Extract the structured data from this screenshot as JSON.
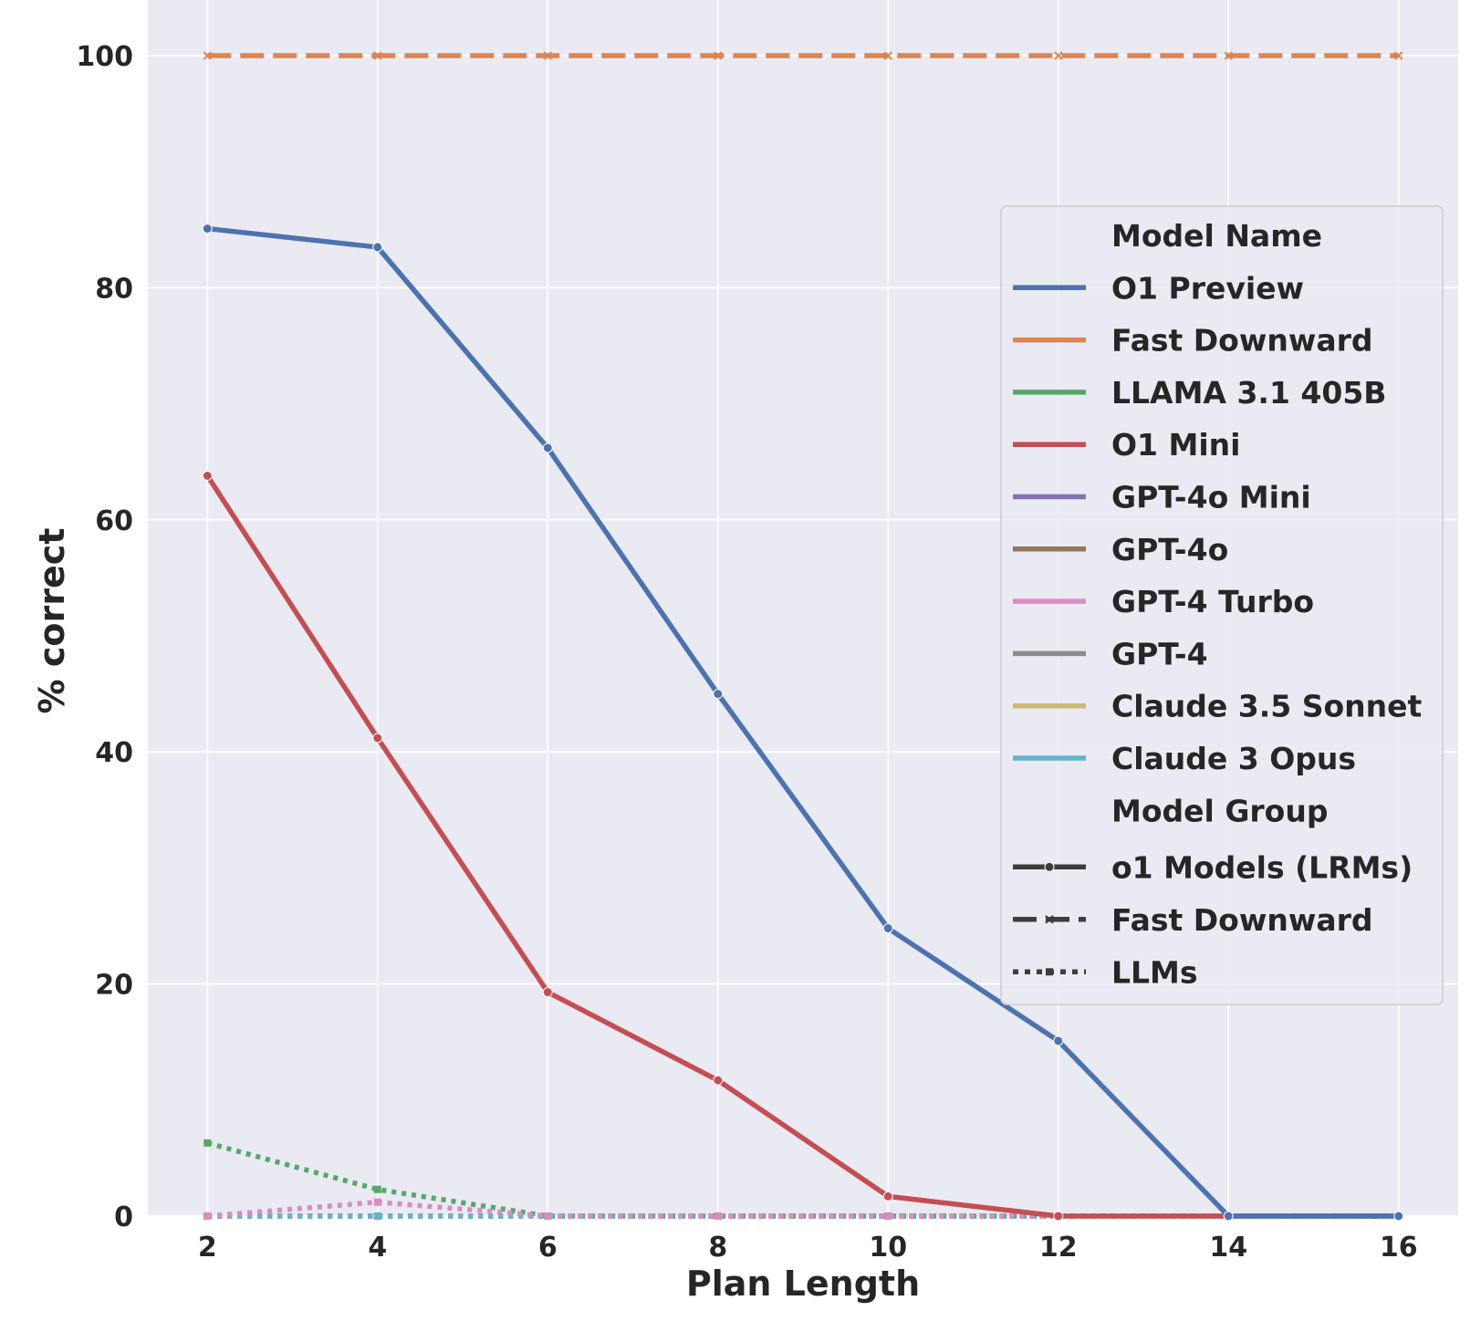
{
  "chart_data": {
    "type": "line",
    "xlabel": "Plan Length",
    "ylabel": "% correct",
    "x": [
      2,
      4,
      6,
      8,
      10,
      12,
      14,
      16
    ],
    "xticks": [
      2,
      4,
      6,
      8,
      10,
      12,
      14,
      16
    ],
    "yticks": [
      0,
      20,
      40,
      60,
      80,
      100
    ],
    "xlim": [
      1.3,
      16.7
    ],
    "ylim": [
      0,
      104.8
    ],
    "grid": true,
    "background": "#eaeaf2",
    "legend_position": "right",
    "legend_sections": [
      {
        "title": "Model Name",
        "entries": [
          {
            "label": "O1 Preview",
            "color": "#4c72b0"
          },
          {
            "label": "Fast Downward",
            "color": "#dd8452"
          },
          {
            "label": "LLAMA 3.1 405B",
            "color": "#55a868"
          },
          {
            "label": "O1 Mini",
            "color": "#c44e52"
          },
          {
            "label": "GPT-4o Mini",
            "color": "#8172b3"
          },
          {
            "label": "GPT-4o",
            "color": "#937860"
          },
          {
            "label": "GPT-4 Turbo",
            "color": "#da8bc3"
          },
          {
            "label": "GPT-4",
            "color": "#8c8c8c"
          },
          {
            "label": "Claude 3.5 Sonnet",
            "color": "#ccb974"
          },
          {
            "label": "Claude 3 Opus",
            "color": "#64b5cd"
          }
        ]
      },
      {
        "title": "Model Group",
        "entries": [
          {
            "label": "o1 Models (LRMs)",
            "style": "solid",
            "marker": "circle"
          },
          {
            "label": "Fast Downward",
            "style": "dashed",
            "marker": "x"
          },
          {
            "label": "LLMs",
            "style": "dotted",
            "marker": "square"
          }
        ]
      }
    ],
    "series": [
      {
        "name": "Fast Downward",
        "group": "Fast Downward",
        "color": "#dd8452",
        "style": "dashed",
        "marker": "x",
        "values": [
          100,
          100,
          100,
          100,
          100,
          100,
          100,
          100
        ]
      },
      {
        "name": "LLAMA 3.1 405B",
        "group": "LLMs",
        "color": "#55a868",
        "style": "dotted",
        "marker": "square",
        "values": [
          6.3,
          2.3,
          0,
          0,
          0,
          0,
          0,
          0
        ]
      },
      {
        "name": "GPT-4o Mini",
        "group": "LLMs",
        "color": "#8172b3",
        "style": "dotted",
        "marker": "square",
        "values": [
          0,
          0,
          0,
          0,
          0,
          0,
          0,
          0
        ]
      },
      {
        "name": "GPT-4o",
        "group": "LLMs",
        "color": "#937860",
        "style": "dotted",
        "marker": "square",
        "values": [
          0,
          0,
          0,
          0,
          0,
          0,
          0,
          0
        ]
      },
      {
        "name": "GPT-4",
        "group": "LLMs",
        "color": "#8c8c8c",
        "style": "dotted",
        "marker": "square",
        "values": [
          0,
          0,
          0,
          0,
          0,
          0,
          0,
          0
        ]
      },
      {
        "name": "Claude 3.5 Sonnet",
        "group": "LLMs",
        "color": "#ccb974",
        "style": "dotted",
        "marker": "square",
        "values": [
          0,
          0,
          0,
          0,
          0,
          0,
          0,
          0
        ]
      },
      {
        "name": "Claude 3 Opus",
        "group": "LLMs",
        "color": "#64b5cd",
        "style": "dotted",
        "marker": "square",
        "values": [
          0,
          0,
          0,
          0,
          0,
          0,
          0,
          0
        ]
      },
      {
        "name": "GPT-4 Turbo",
        "group": "LLMs",
        "color": "#da8bc3",
        "style": "dotted",
        "marker": "square",
        "values": [
          0,
          1.2,
          0,
          0,
          0,
          0,
          0,
          0
        ]
      },
      {
        "name": "O1 Mini",
        "group": "o1 Models (LRMs)",
        "color": "#c44e52",
        "style": "solid",
        "marker": "circle",
        "values": [
          63.8,
          41.2,
          19.3,
          11.7,
          1.7,
          0,
          0,
          0
        ]
      },
      {
        "name": "O1 Preview",
        "group": "o1 Models (LRMs)",
        "color": "#4c72b0",
        "style": "solid",
        "marker": "circle",
        "values": [
          85.1,
          83.5,
          66.2,
          45,
          24.8,
          15.1,
          0,
          0
        ]
      }
    ]
  }
}
